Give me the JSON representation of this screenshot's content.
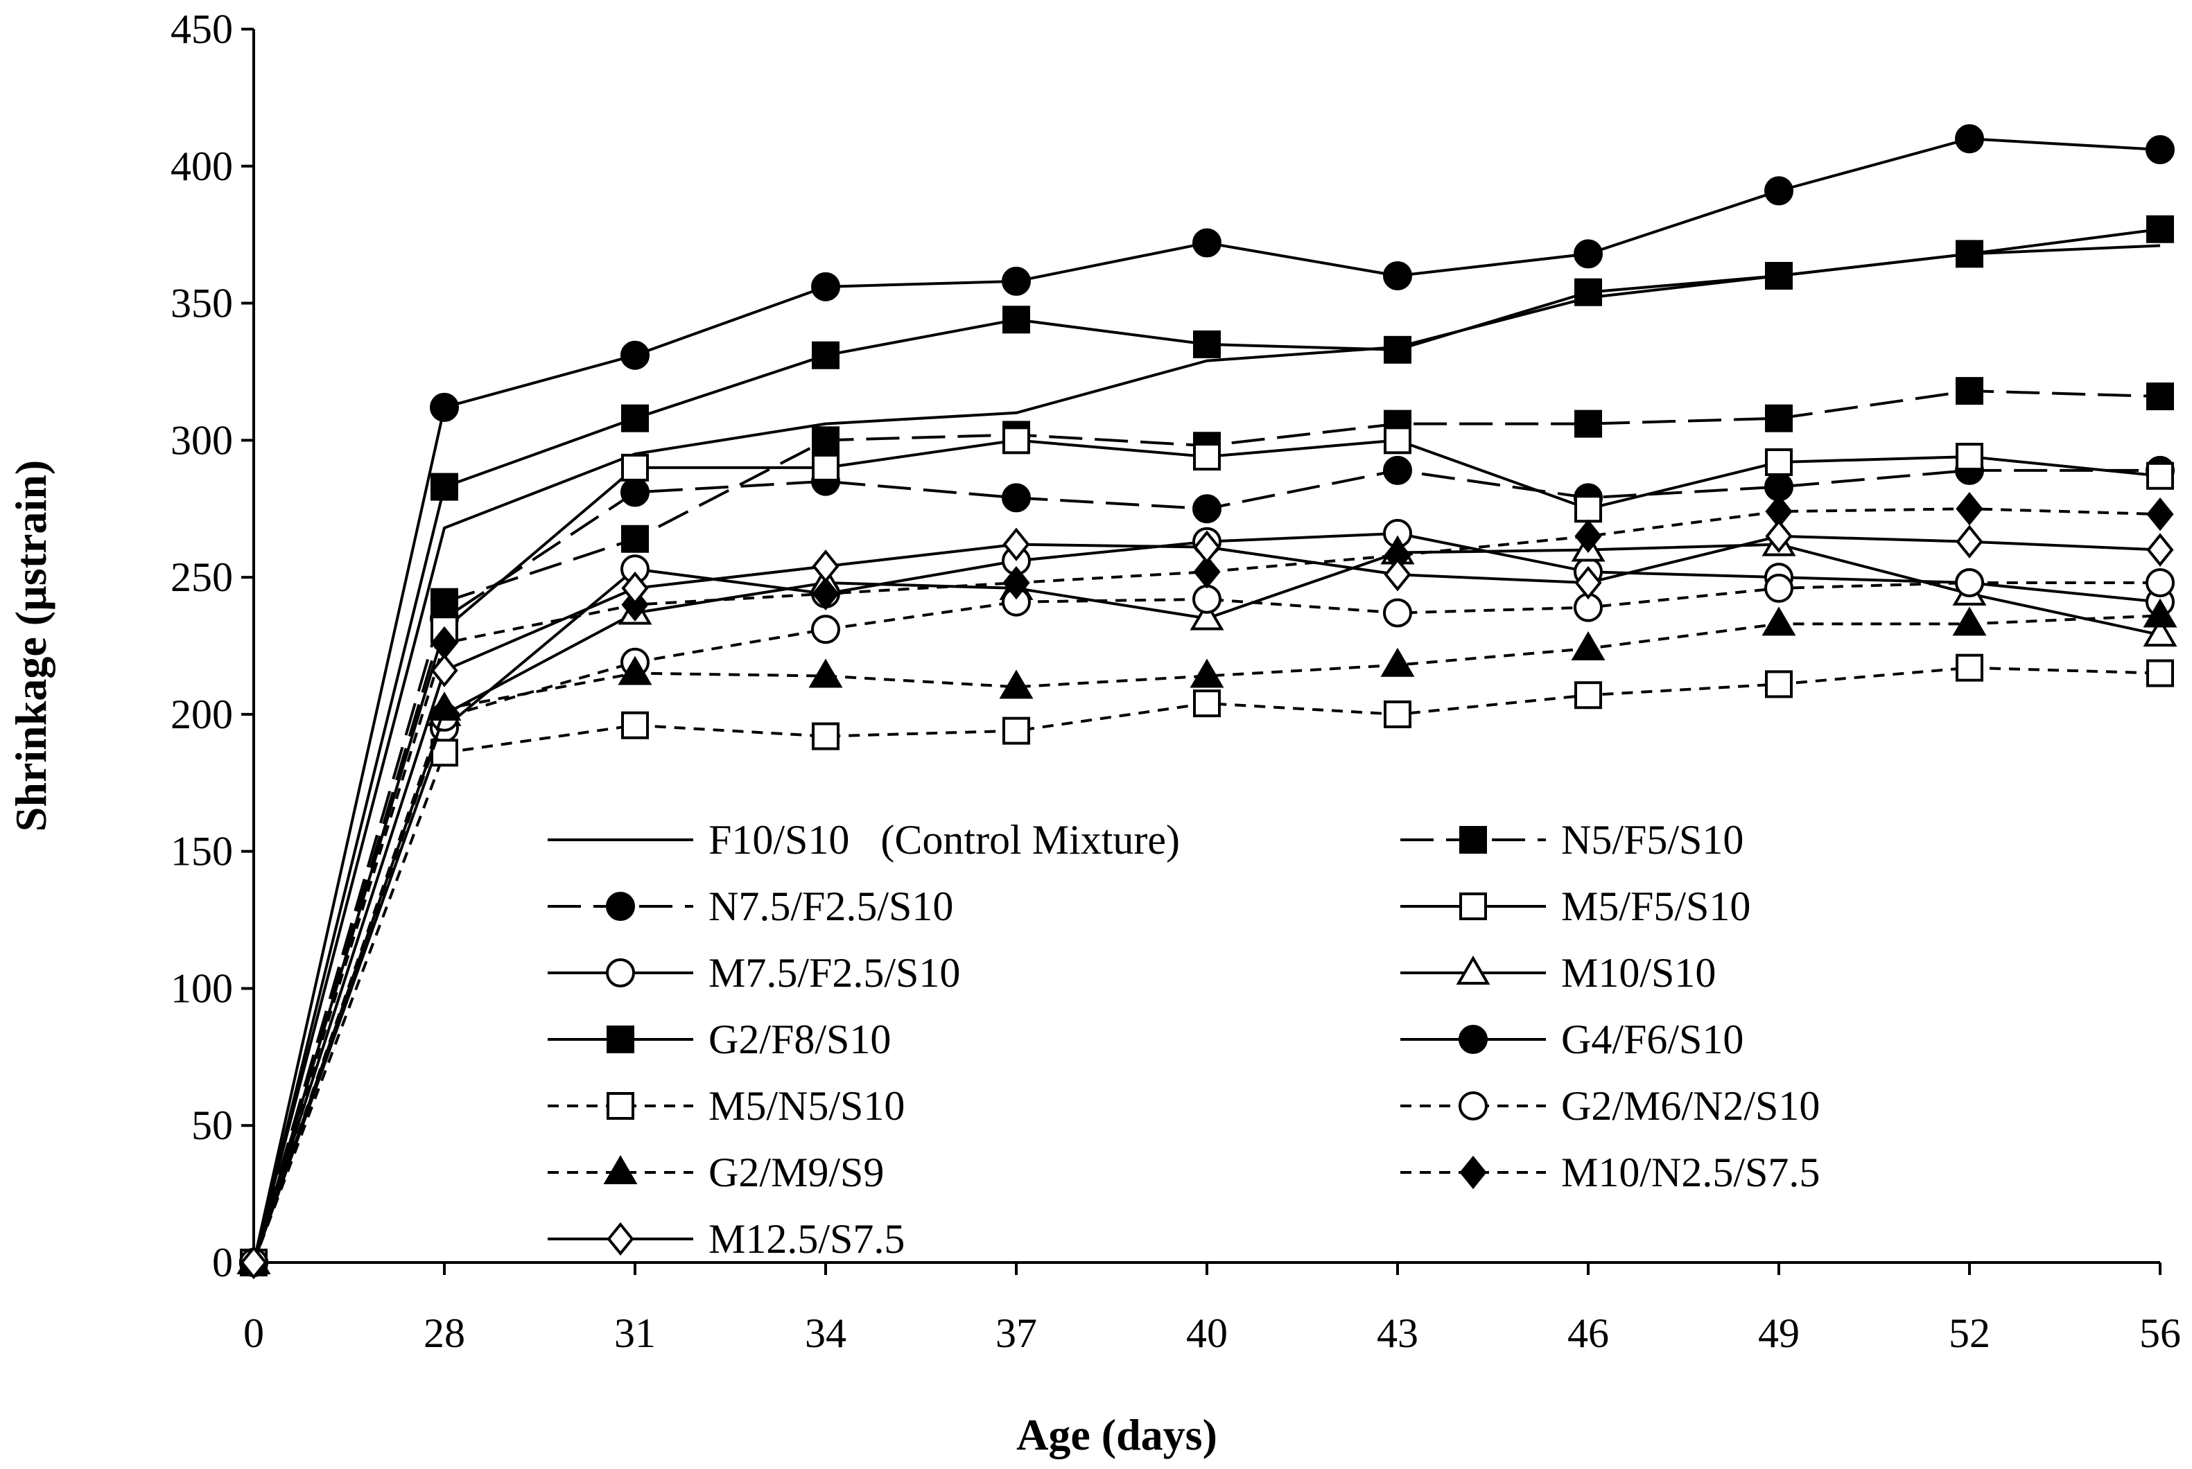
{
  "chart_data": {
    "type": "line",
    "title": "",
    "xlabel": "Age (days)",
    "ylabel": "Shrinkage (µstrain)",
    "categories": [
      "0",
      "28",
      "31",
      "34",
      "37",
      "40",
      "43",
      "46",
      "49",
      "52",
      "56"
    ],
    "ylim": [
      0,
      450
    ],
    "yticks": [
      "0",
      "50",
      "100",
      "150",
      "200",
      "250",
      "300",
      "350",
      "400",
      "450"
    ],
    "grid": false,
    "legend_position": "center-bottom",
    "series": [
      {
        "name": "F10/S10   (Control Mixture)",
        "line": "solid",
        "marker": "none",
        "values": [
          0,
          268,
          295,
          306,
          310,
          329,
          334,
          352,
          360,
          368,
          371
        ]
      },
      {
        "name": "N5/F5/S10",
        "line": "longdash",
        "marker": "square-filled",
        "values": [
          0,
          241,
          264,
          300,
          302,
          298,
          306,
          306,
          308,
          318,
          316
        ]
      },
      {
        "name": "N7.5/F2.5/S10",
        "line": "longdash",
        "marker": "circle-filled",
        "values": [
          0,
          235,
          281,
          285,
          279,
          275,
          289,
          279,
          283,
          289,
          289
        ]
      },
      {
        "name": "M5/F5/S10",
        "line": "solid",
        "marker": "square-open",
        "values": [
          0,
          231,
          290,
          290,
          300,
          294,
          300,
          275,
          292,
          294,
          287
        ]
      },
      {
        "name": "M7.5/F2.5/S10",
        "line": "solid",
        "marker": "circle-open",
        "values": [
          0,
          195,
          253,
          244,
          256,
          263,
          266,
          252,
          250,
          248,
          241
        ]
      },
      {
        "name": "M10/S10",
        "line": "solid",
        "marker": "triangle-open",
        "values": [
          0,
          200,
          237,
          248,
          246,
          235,
          259,
          260,
          262,
          244,
          229
        ]
      },
      {
        "name": "G2/F8/S10",
        "line": "solid",
        "marker": "square-filled",
        "values": [
          0,
          283,
          308,
          331,
          344,
          335,
          333,
          354,
          360,
          368,
          377
        ]
      },
      {
        "name": "G4/F6/S10",
        "line": "solid",
        "marker": "circle-filled",
        "values": [
          0,
          312,
          331,
          356,
          358,
          372,
          360,
          368,
          391,
          410,
          406
        ]
      },
      {
        "name": "M5/N5/S10",
        "line": "dash",
        "marker": "square-open",
        "values": [
          0,
          186,
          196,
          192,
          194,
          204,
          200,
          207,
          211,
          217,
          215
        ]
      },
      {
        "name": "G2/M6/N2/S10",
        "line": "dash",
        "marker": "circle-open",
        "values": [
          0,
          199,
          219,
          231,
          241,
          242,
          237,
          239,
          246,
          248,
          248
        ]
      },
      {
        "name": "G2/M9/S9",
        "line": "dash",
        "marker": "triangle-filled",
        "values": [
          0,
          202,
          215,
          214,
          210,
          214,
          218,
          224,
          233,
          233,
          236
        ]
      },
      {
        "name": "M10/N2.5/S7.5",
        "line": "dash",
        "marker": "diamond-filled",
        "values": [
          0,
          226,
          240,
          244,
          248,
          252,
          258,
          265,
          274,
          275,
          273
        ]
      },
      {
        "name": "M12.5/S7.5",
        "line": "solid",
        "marker": "diamond-open",
        "values": [
          0,
          216,
          246,
          254,
          262,
          261,
          251,
          248,
          265,
          263,
          260
        ]
      }
    ]
  }
}
